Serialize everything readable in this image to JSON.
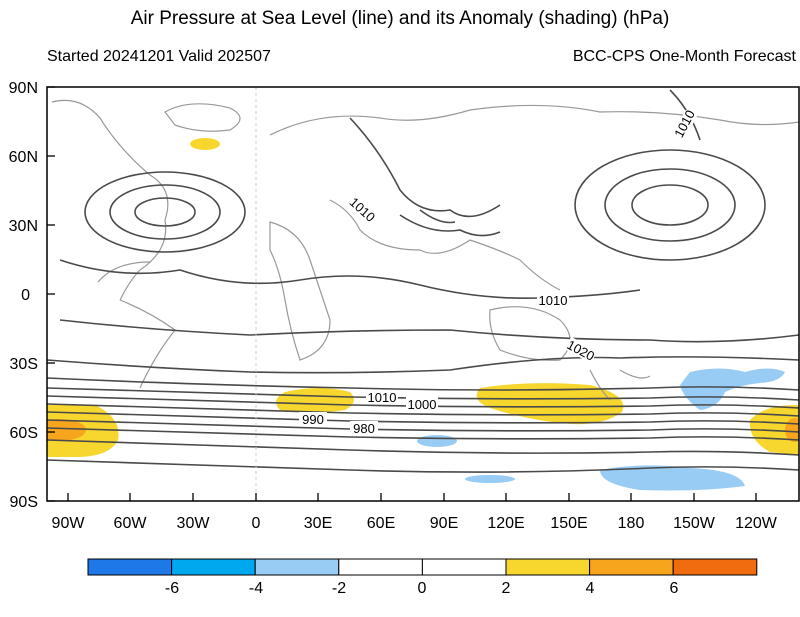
{
  "title": "Air Pressure at Sea Level (line) and its Anomaly (shading) (hPa)",
  "subtitle_left": "Started 20241201  Valid 202507",
  "subtitle_right": "BCC-CPS One-Month Forecast",
  "lat_labels": [
    "90N",
    "60N",
    "30N",
    "0",
    "30S",
    "60S",
    "90S"
  ],
  "lon_labels": [
    "90W",
    "60W",
    "30W",
    "0",
    "30E",
    "60E",
    "90E",
    "120E",
    "150E",
    "180",
    "150W",
    "120W"
  ],
  "contour_labels": [
    "1010",
    "1010",
    "1010",
    "1020",
    "1010",
    "1000",
    "990",
    "980"
  ],
  "legend": {
    "labels": [
      "-6",
      "-4",
      "-2",
      "0",
      "2",
      "4",
      "6"
    ],
    "colors": [
      "#1f78e8",
      "#00a8f0",
      "#99ccf5",
      "#ffffff",
      "#ffffff",
      "#f7d62e",
      "#f7a51c",
      "#f06c0e"
    ]
  }
}
